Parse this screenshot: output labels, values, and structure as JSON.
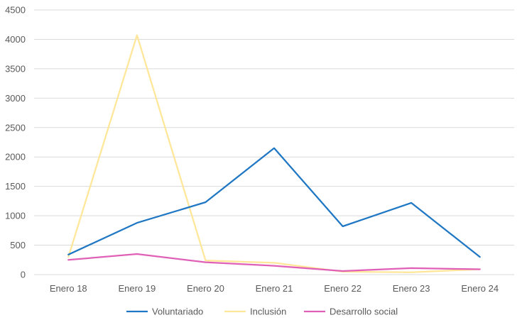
{
  "chart_data": {
    "type": "line",
    "title": "",
    "xlabel": "",
    "ylabel": "",
    "categories": [
      "Enero 18",
      "Enero 19",
      "Enero 20",
      "Enero 21",
      "Enero 22",
      "Enero 23",
      "Enero 24"
    ],
    "ylim": [
      0,
      4500
    ],
    "yticks": [
      0,
      500,
      1000,
      1500,
      2000,
      2500,
      3000,
      3500,
      4000,
      4500
    ],
    "grid": true,
    "legend_position": "bottom",
    "series": [
      {
        "name": "Voluntariado",
        "color": "#1f77c4",
        "values": [
          340,
          880,
          1230,
          2150,
          820,
          1220,
          300
        ]
      },
      {
        "name": "Inclusión",
        "color": "#ffe699",
        "values": [
          300,
          4070,
          240,
          200,
          50,
          40,
          90
        ]
      },
      {
        "name": "Desarrollo social",
        "color": "#e060b8",
        "values": [
          250,
          350,
          210,
          150,
          60,
          110,
          90
        ]
      }
    ]
  }
}
